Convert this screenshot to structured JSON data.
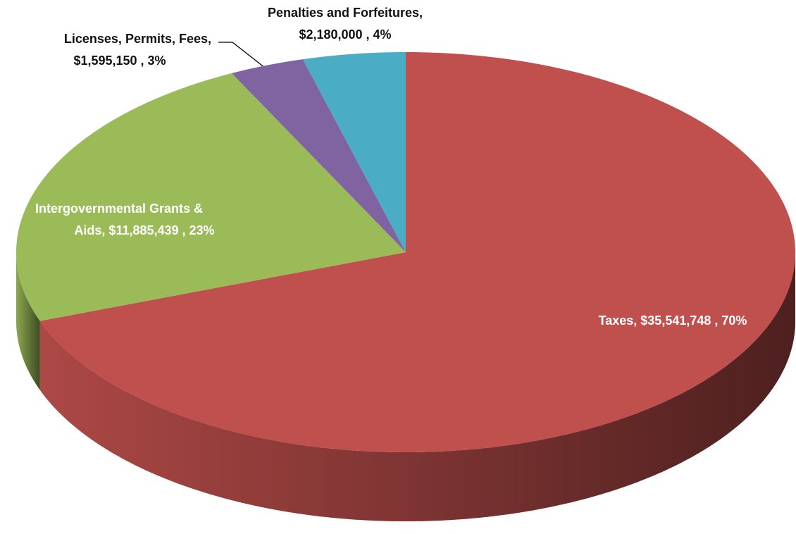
{
  "chart_data": {
    "type": "pie3d",
    "values": [
      35541748,
      11885439,
      1595150,
      2180000
    ],
    "value_labels": [
      [
        "Taxes,  $35,541,748 , 70%"
      ],
      [
        "Intergovernmental Grants &",
        "Aids,  $11,885,439 , 23%"
      ],
      [
        "Licenses, Permits, Fees,",
        "$1,595,150 , 3%"
      ],
      [
        "Penalties and Forfeitures,",
        "$2,180,000 , 4%"
      ]
    ],
    "colors": [
      "#c0504d",
      "#9bbb59",
      "#8064a2",
      "#4bacc6"
    ]
  }
}
